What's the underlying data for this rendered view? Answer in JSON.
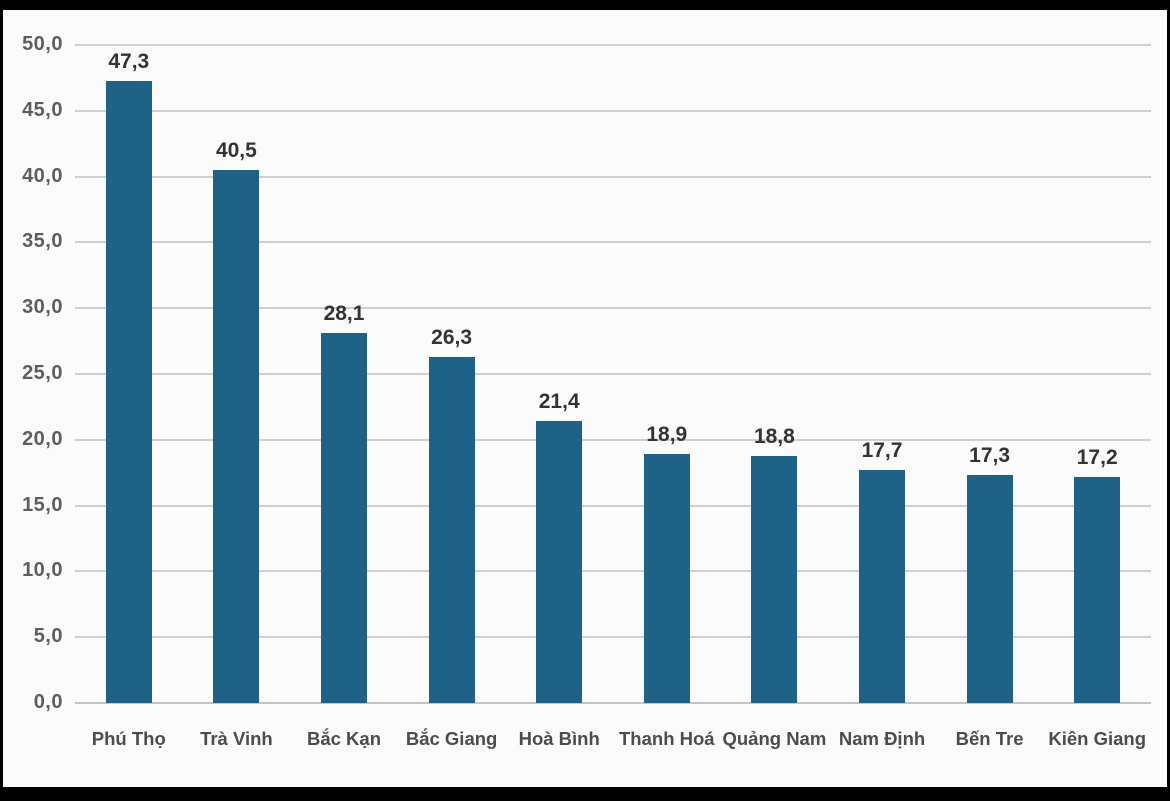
{
  "chart_data": {
    "type": "bar",
    "title": "",
    "xlabel": "",
    "ylabel": "",
    "categories": [
      "Phú Thọ",
      "Trà Vinh",
      "Bắc Kạn",
      "Bắc Giang",
      "Hoà Bình",
      "Thanh Hoá",
      "Quảng Nam",
      "Nam Định",
      "Bến Tre",
      "Kiên Giang"
    ],
    "values": [
      47.3,
      40.5,
      28.1,
      26.3,
      21.4,
      18.9,
      18.8,
      17.7,
      17.3,
      17.2
    ],
    "value_labels": [
      "47,3",
      "40,5",
      "28,1",
      "26,3",
      "21,4",
      "18,9",
      "18,8",
      "17,7",
      "17,3",
      "17,2"
    ],
    "y_tick_labels": [
      "0,0",
      "5,0",
      "10,0",
      "15,0",
      "20,0",
      "25,0",
      "30,0",
      "35,0",
      "40,0",
      "45,0",
      "50,0"
    ],
    "y_ticks": [
      0,
      5,
      10,
      15,
      20,
      25,
      30,
      35,
      40,
      45,
      50
    ],
    "ylim": [
      0,
      50
    ],
    "grid": true,
    "legend": false,
    "decimal_separator": ",",
    "bar_color": "#1f6288",
    "value_label_color": "#333333",
    "y_label_color": "#5d5d5d",
    "x_label_color": "#4c4c4c",
    "gridline_color": "#cfcfcf",
    "plot_background": "#fbfbfb",
    "frame_background": "#000000"
  }
}
